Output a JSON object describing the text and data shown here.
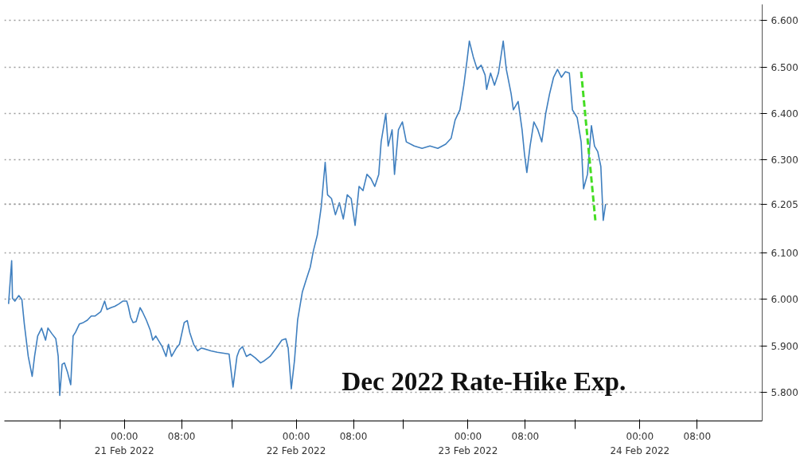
{
  "chart_data": {
    "type": "line",
    "annotations": [
      "Dec 2022 Rate-Hike Exp."
    ],
    "xlim": [
      "2022-02-20T07:15",
      "2022-02-24T17:05"
    ],
    "ylim": [
      5.738,
      6.635
    ],
    "xticks": [
      {
        "value": "2022-02-20T15:00",
        "label": null
      },
      {
        "value": "2022-02-21T00:00",
        "label": "00:00\n21 Feb 2022"
      },
      {
        "value": "2022-02-21T08:00",
        "label": "08:00"
      },
      {
        "value": "2022-02-21T15:00",
        "label": null
      },
      {
        "value": "2022-02-22T00:00",
        "label": "00:00\n22 Feb 2022"
      },
      {
        "value": "2022-02-22T08:00",
        "label": "08:00"
      },
      {
        "value": "2022-02-22T15:00",
        "label": null
      },
      {
        "value": "2022-02-23T00:00",
        "label": "00:00\n23 Feb 2022"
      },
      {
        "value": "2022-02-23T08:00",
        "label": "08:00"
      },
      {
        "value": "2022-02-23T15:00",
        "label": null
      },
      {
        "value": "2022-02-24T00:00",
        "label": "00:00\n24 Feb 2022"
      },
      {
        "value": "2022-02-24T08:00",
        "label": "08:00"
      }
    ],
    "yticks": [
      {
        "value": 5.8,
        "label": "5.800"
      },
      {
        "value": 5.9,
        "label": "5.900"
      },
      {
        "value": 6.0,
        "label": "6.000"
      },
      {
        "value": 6.1,
        "label": "6.100"
      },
      {
        "value": 6.3,
        "label": "6.300"
      },
      {
        "value": 6.4,
        "label": "6.400"
      },
      {
        "value": 6.5,
        "label": "6.500"
      },
      {
        "value": 6.6,
        "label": "6.600"
      }
    ],
    "ref_lines": [
      {
        "axis": "y",
        "value": 6.205,
        "label": "6.205"
      }
    ],
    "grid": true,
    "line_style": "solid",
    "series": [
      {
        "color": "#3f7fbf",
        "x": [
          "2022-02-20T07:50",
          "2022-02-20T08:16",
          "2022-02-20T08:23",
          "2022-02-20T08:43",
          "2022-02-20T09:16",
          "2022-02-20T09:42",
          "2022-02-20T10:02",
          "2022-02-20T10:35",
          "2022-02-20T11:08",
          "2022-02-20T11:28",
          "2022-02-20T11:54",
          "2022-02-20T12:27",
          "2022-02-20T13:00",
          "2022-02-20T13:20",
          "2022-02-20T13:53",
          "2022-02-20T14:26",
          "2022-02-20T14:46",
          "2022-02-20T14:59",
          "2022-02-20T15:19",
          "2022-02-20T15:38",
          "2022-02-20T16:05",
          "2022-02-20T16:31",
          "2022-02-20T16:51",
          "2022-02-20T17:11",
          "2022-02-20T17:44",
          "2022-02-20T18:17",
          "2022-02-20T18:50",
          "2022-02-20T19:23",
          "2022-02-20T19:56",
          "2022-02-20T20:42",
          "2022-02-20T21:15",
          "2022-02-20T21:35",
          "2022-02-20T22:08",
          "2022-02-20T22:41",
          "2022-02-20T23:14",
          "2022-02-20T23:47",
          "2022-02-21T00:20",
          "2022-02-21T00:33",
          "2022-02-21T00:53",
          "2022-02-21T01:13",
          "2022-02-21T01:39",
          "2022-02-21T02:12",
          "2022-02-21T02:32",
          "2022-02-21T03:05",
          "2022-02-21T03:38",
          "2022-02-21T03:58",
          "2022-02-21T04:24",
          "2022-02-21T05:17",
          "2022-02-21T05:50",
          "2022-02-21T06:10",
          "2022-02-21T06:36",
          "2022-02-21T07:16",
          "2022-02-21T07:42",
          "2022-02-21T08:22",
          "2022-02-21T08:48",
          "2022-02-21T09:08",
          "2022-02-21T09:41",
          "2022-02-21T10:14",
          "2022-02-21T10:47",
          "2022-02-21T12:06",
          "2022-02-21T12:59",
          "2022-02-21T14:38",
          "2022-02-21T15:11",
          "2022-02-21T15:44",
          "2022-02-21T16:04",
          "2022-02-21T16:30",
          "2022-02-21T17:03",
          "2022-02-21T17:36",
          "2022-02-21T18:16",
          "2022-02-21T19:02",
          "2022-02-21T19:35",
          "2022-02-21T20:21",
          "2022-02-21T21:14",
          "2022-02-21T22:00",
          "2022-02-21T22:33",
          "2022-02-21T22:53",
          "2022-02-21T23:19",
          "2022-02-21T23:46",
          "2022-02-22T00:12",
          "2022-02-22T00:52",
          "2022-02-22T01:25",
          "2022-02-22T01:58",
          "2022-02-22T02:24",
          "2022-02-22T02:57",
          "2022-02-22T03:30",
          "2022-02-22T04:03",
          "2022-02-22T04:23",
          "2022-02-22T04:56",
          "2022-02-22T05:29",
          "2022-02-22T06:02",
          "2022-02-22T06:35",
          "2022-02-22T07:08",
          "2022-02-22T07:41",
          "2022-02-22T08:14",
          "2022-02-22T08:47",
          "2022-02-22T09:20",
          "2022-02-22T09:53",
          "2022-02-22T10:26",
          "2022-02-22T10:59",
          "2022-02-22T11:32",
          "2022-02-22T11:52",
          "2022-02-22T12:31",
          "2022-02-22T12:51",
          "2022-02-22T13:24",
          "2022-02-22T13:44",
          "2022-02-22T14:17",
          "2022-02-22T14:50",
          "2022-02-22T15:23",
          "2022-02-22T16:29",
          "2022-02-22T17:35",
          "2022-02-22T18:41",
          "2022-02-22T19:47",
          "2022-02-22T20:53",
          "2022-02-22T21:39",
          "2022-02-22T22:12",
          "2022-02-22T22:52",
          "2022-02-22T23:25",
          "2022-02-22T23:51",
          "2022-02-23T00:11",
          "2022-02-23T00:44",
          "2022-02-23T01:17",
          "2022-02-23T01:50",
          "2022-02-23T02:23",
          "2022-02-23T02:36",
          "2022-02-23T03:09",
          "2022-02-23T03:42",
          "2022-02-23T04:15",
          "2022-02-23T04:55",
          "2022-02-23T05:21",
          "2022-02-23T06:01",
          "2022-02-23T06:20",
          "2022-02-23T07:00",
          "2022-02-23T07:33",
          "2022-02-23T07:53",
          "2022-02-23T08:13",
          "2022-02-23T08:40",
          "2022-02-23T09:12",
          "2022-02-23T09:45",
          "2022-02-23T10:18",
          "2022-02-23T10:51",
          "2022-02-23T11:24",
          "2022-02-23T11:57",
          "2022-02-23T12:30",
          "2022-02-23T13:03",
          "2022-02-23T13:36",
          "2022-02-23T14:09",
          "2022-02-23T14:35",
          "2022-02-23T15:15",
          "2022-02-23T15:48",
          "2022-02-23T16:08",
          "2022-02-23T16:41",
          "2022-02-23T17:14",
          "2022-02-23T17:40",
          "2022-02-23T18:07",
          "2022-02-23T18:33",
          "2022-02-23T18:53",
          "2022-02-23T19:13"
        ],
        "values": [
          5.99,
          6.083,
          6.002,
          5.996,
          6.008,
          5.999,
          5.947,
          5.877,
          5.834,
          5.877,
          5.921,
          5.938,
          5.912,
          5.938,
          5.926,
          5.915,
          5.877,
          5.793,
          5.86,
          5.863,
          5.842,
          5.816,
          5.921,
          5.929,
          5.947,
          5.95,
          5.955,
          5.964,
          5.964,
          5.973,
          5.996,
          5.978,
          5.982,
          5.985,
          5.99,
          5.996,
          5.996,
          5.985,
          5.961,
          5.95,
          5.952,
          5.982,
          5.973,
          5.955,
          5.933,
          5.912,
          5.921,
          5.898,
          5.877,
          5.903,
          5.877,
          5.895,
          5.903,
          5.95,
          5.954,
          5.929,
          5.903,
          5.889,
          5.895,
          5.889,
          5.886,
          5.882,
          5.811,
          5.877,
          5.891,
          5.898,
          5.877,
          5.882,
          5.874,
          5.863,
          5.868,
          5.877,
          5.895,
          5.912,
          5.915,
          5.895,
          5.807,
          5.868,
          5.955,
          6.016,
          6.043,
          6.069,
          6.104,
          6.138,
          6.199,
          6.295,
          6.225,
          6.217,
          6.182,
          6.208,
          6.173,
          6.225,
          6.217,
          6.159,
          6.243,
          6.234,
          6.269,
          6.26,
          6.243,
          6.269,
          6.339,
          6.4,
          6.33,
          6.365,
          6.269,
          6.365,
          6.382,
          6.339,
          6.33,
          6.325,
          6.33,
          6.325,
          6.334,
          6.347,
          6.386,
          6.408,
          6.461,
          6.513,
          6.556,
          6.522,
          6.495,
          6.504,
          6.483,
          6.452,
          6.487,
          6.461,
          6.487,
          6.556,
          6.495,
          6.443,
          6.408,
          6.426,
          6.365,
          6.313,
          6.273,
          6.33,
          6.382,
          6.365,
          6.339,
          6.4,
          6.443,
          6.478,
          6.495,
          6.478,
          6.49,
          6.487,
          6.408,
          6.391,
          6.339,
          6.238,
          6.269,
          6.374,
          6.33,
          6.318,
          6.286,
          6.17,
          6.205
        ]
      },
      {
        "type": "line",
        "color": "#44dd22",
        "line_style": "dashed",
        "x": [
          "2022-02-23T15:48",
          "2022-02-23T17:47"
        ],
        "values": [
          6.49,
          6.17
        ]
      }
    ]
  }
}
